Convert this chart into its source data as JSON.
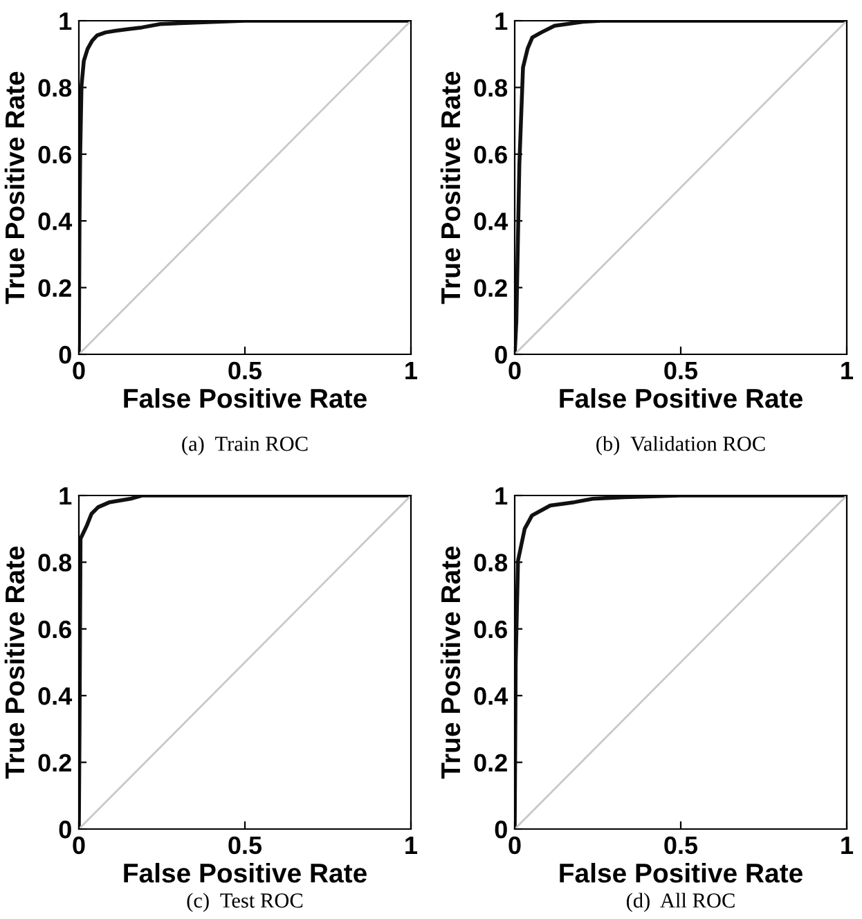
{
  "chart_data": [
    {
      "type": "line",
      "title": "(a)  Train ROC",
      "xlabel": "False Positive Rate",
      "ylabel": "True Positive Rate",
      "xlim": [
        0,
        1
      ],
      "ylim": [
        0,
        1
      ],
      "xticks": [
        0,
        0.5,
        1
      ],
      "yticks": [
        0,
        0.2,
        0.4,
        0.6,
        0.8,
        1
      ],
      "grid": false,
      "legend": false,
      "series": [
        {
          "color": "#111111",
          "x": [
            0,
            0.002,
            0.004,
            0.008,
            0.015,
            0.026,
            0.04,
            0.055,
            0.08,
            0.11,
            0.15,
            0.19,
            0.245,
            0.36,
            0.5,
            1
          ],
          "values": [
            0,
            0.4,
            0.6,
            0.806,
            0.88,
            0.915,
            0.94,
            0.956,
            0.965,
            0.97,
            0.975,
            0.98,
            0.99,
            0.995,
            1,
            1
          ]
        },
        {
          "color": "#c8c8c8",
          "x": [
            0,
            1
          ],
          "values": [
            0,
            1
          ]
        }
      ]
    },
    {
      "type": "line",
      "title": "(b)  Validation ROC",
      "xlabel": "False Positive Rate",
      "ylabel": "True Positive Rate",
      "xlim": [
        0,
        1
      ],
      "ylim": [
        0,
        1
      ],
      "xticks": [
        0,
        0.5,
        1
      ],
      "yticks": [
        0,
        0.2,
        0.4,
        0.6,
        0.8,
        1
      ],
      "grid": false,
      "legend": false,
      "series": [
        {
          "color": "#111111",
          "x": [
            0,
            0.005,
            0.014,
            0.025,
            0.039,
            0.053,
            0.08,
            0.12,
            0.205,
            0.26,
            1
          ],
          "values": [
            0,
            0.1,
            0.57,
            0.86,
            0.917,
            0.95,
            0.965,
            0.985,
            0.997,
            1,
            1
          ]
        },
        {
          "color": "#c8c8c8",
          "x": [
            0,
            1
          ],
          "values": [
            0,
            1
          ]
        }
      ]
    },
    {
      "type": "line",
      "title": "(c)  Test ROC",
      "xlabel": "False Positive Rate",
      "ylabel": "True Positive Rate",
      "xlim": [
        0,
        1
      ],
      "ylim": [
        0,
        1
      ],
      "xticks": [
        0,
        0.5,
        1
      ],
      "yticks": [
        0,
        0.2,
        0.4,
        0.6,
        0.8,
        1
      ],
      "grid": false,
      "legend": false,
      "series": [
        {
          "color": "#111111",
          "x": [
            0,
            0.002,
            0.005,
            0.024,
            0.038,
            0.058,
            0.093,
            0.155,
            0.19,
            1
          ],
          "values": [
            0,
            0.3,
            0.87,
            0.91,
            0.945,
            0.965,
            0.98,
            0.99,
            1,
            1
          ]
        },
        {
          "color": "#c8c8c8",
          "x": [
            0,
            1
          ],
          "values": [
            0,
            1
          ]
        }
      ]
    },
    {
      "type": "line",
      "title": "(d)  All ROC",
      "xlabel": "False Positive Rate",
      "ylabel": "True Positive Rate",
      "xlim": [
        0,
        1
      ],
      "ylim": [
        0,
        1
      ],
      "xticks": [
        0,
        0.5,
        1
      ],
      "yticks": [
        0,
        0.2,
        0.4,
        0.6,
        0.8,
        1
      ],
      "grid": false,
      "legend": false,
      "series": [
        {
          "color": "#111111",
          "x": [
            0,
            0.003,
            0.01,
            0.03,
            0.052,
            0.107,
            0.18,
            0.235,
            0.33,
            0.5,
            1
          ],
          "values": [
            0,
            0.5,
            0.805,
            0.9,
            0.94,
            0.97,
            0.98,
            0.99,
            0.995,
            1,
            1
          ]
        },
        {
          "color": "#c8c8c8",
          "x": [
            0,
            1
          ],
          "values": [
            0,
            1
          ]
        }
      ]
    }
  ]
}
